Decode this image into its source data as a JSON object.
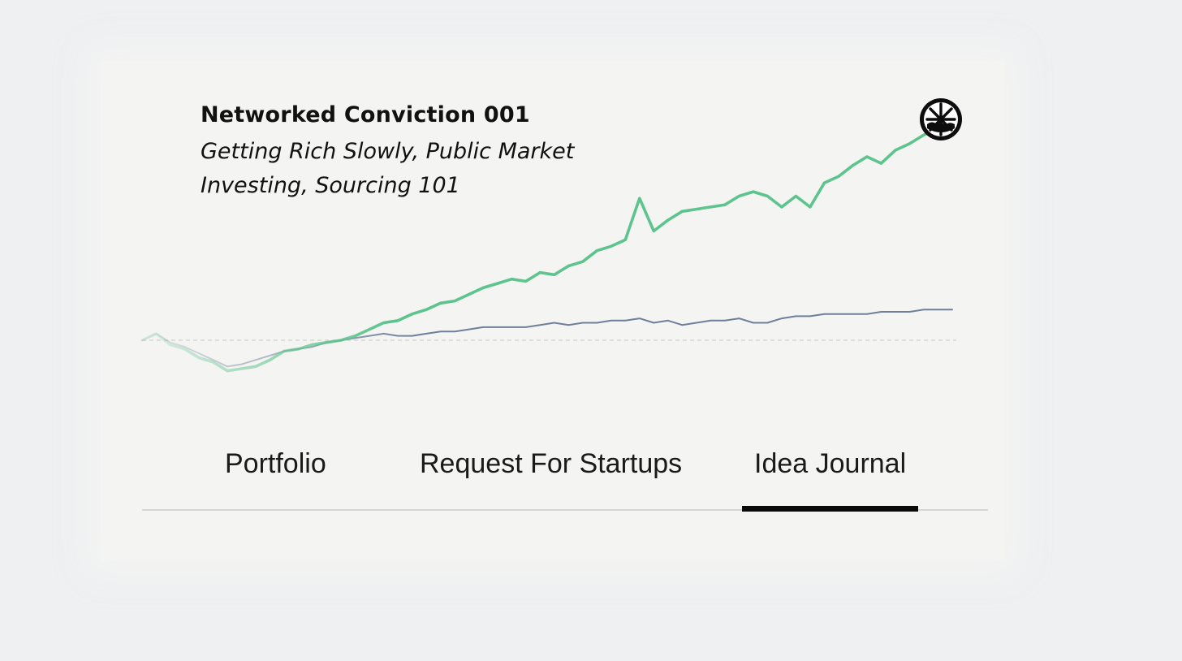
{
  "post": {
    "title": "Networked Conviction 001",
    "subtitle": "Getting Rich Slowly, Public Market Investing, Sourcing 101"
  },
  "tabs": [
    {
      "label": "Portfolio",
      "active": false
    },
    {
      "label": "Request For Startups",
      "active": false
    },
    {
      "label": "Idea Journal",
      "active": true
    }
  ],
  "logo": {
    "icon": "tree-roundel-icon"
  },
  "colors": {
    "portfolio_line": "#5cc48c",
    "benchmark_line": "#6f7f99",
    "baseline": "#cfcfcf",
    "active_tab_underline": "#0a0a0a"
  },
  "chart_data": {
    "type": "line",
    "title": "",
    "xlabel": "",
    "ylabel": "",
    "grid": false,
    "legend": "none",
    "baseline": 0,
    "ylim": [
      -20,
      100
    ],
    "series": [
      {
        "values": [
          0,
          3,
          -2,
          -4,
          -8,
          -10,
          -14,
          -13,
          -12,
          -9,
          -5,
          -4,
          -2,
          -1,
          0,
          2,
          5,
          8,
          9,
          12,
          14,
          17,
          18,
          21,
          24,
          26,
          28,
          27,
          31,
          30,
          34,
          36,
          41,
          43,
          46,
          65,
          50,
          55,
          59,
          60,
          61,
          62,
          66,
          68,
          66,
          61,
          66,
          61,
          72,
          75,
          80,
          84,
          81,
          87,
          90,
          94,
          97,
          100
        ]
      },
      {
        "values": [
          0,
          3,
          -1,
          -3,
          -6,
          -9,
          -12,
          -11,
          -9,
          -7,
          -5,
          -4,
          -3,
          -1,
          0,
          1,
          2,
          3,
          2,
          2,
          3,
          4,
          4,
          5,
          6,
          6,
          6,
          6,
          7,
          8,
          7,
          8,
          8,
          9,
          9,
          10,
          8,
          9,
          7,
          8,
          9,
          9,
          10,
          8,
          8,
          10,
          11,
          11,
          12,
          12,
          12,
          12,
          13,
          13,
          13,
          14,
          14,
          14
        ]
      }
    ]
  }
}
